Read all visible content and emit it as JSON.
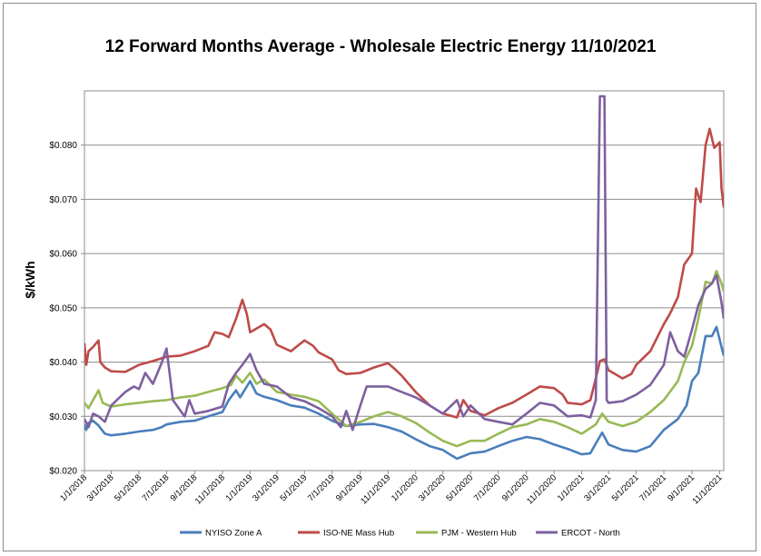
{
  "chart_data": {
    "type": "line",
    "title": "12 Forward Months Average - Wholesale Electric Energy 11/10/2021",
    "ylabel": "$/kWh",
    "xlabel": "",
    "ylim": [
      0.02,
      0.09
    ],
    "y_ticks": [
      "$0.020",
      "$0.030",
      "$0.040",
      "$0.050",
      "$0.060",
      "$0.070",
      "$0.080"
    ],
    "x_tick_labels": [
      "1/1/2018",
      "3/1/2018",
      "5/1/2018",
      "7/1/2018",
      "9/1/2018",
      "11/1/2018",
      "1/1/2019",
      "3/1/2019",
      "5/1/2019",
      "7/1/2019",
      "9/1/2019",
      "11/1/2019",
      "1/1/2020",
      "3/1/2020",
      "5/1/2020",
      "7/1/2020",
      "9/1/2020",
      "11/1/2020",
      "1/1/2021",
      "3/1/2021",
      "5/1/2021",
      "7/1/2021",
      "9/1/2021",
      "11/1/2021"
    ],
    "x_range": [
      "1/1/2018",
      "11/10/2021"
    ],
    "grid": "horizontal",
    "legend_position": "bottom",
    "series": [
      {
        "name": "NYISO Zone A",
        "color": "#4a7ebb",
        "points": [
          [
            "1/1/2018",
            0.0285
          ],
          [
            "1/5/2018",
            0.0275
          ],
          [
            "1/10/2018",
            0.0288
          ],
          [
            "1/20/2018",
            0.0292
          ],
          [
            "2/1/2018",
            0.0283
          ],
          [
            "2/15/2018",
            0.0268
          ],
          [
            "3/1/2018",
            0.0265
          ],
          [
            "4/1/2018",
            0.0268
          ],
          [
            "5/1/2018",
            0.0272
          ],
          [
            "6/1/2018",
            0.0275
          ],
          [
            "6/20/2018",
            0.028
          ],
          [
            "7/1/2018",
            0.0285
          ],
          [
            "8/1/2018",
            0.029
          ],
          [
            "9/1/2018",
            0.0292
          ],
          [
            "10/1/2018",
            0.03
          ],
          [
            "11/1/2018",
            0.0308
          ],
          [
            "11/15/2018",
            0.033
          ],
          [
            "12/1/2018",
            0.0348
          ],
          [
            "12/10/2018",
            0.0335
          ],
          [
            "1/1/2019",
            0.0365
          ],
          [
            "1/15/2019",
            0.0342
          ],
          [
            "2/1/2019",
            0.0336
          ],
          [
            "3/1/2019",
            0.033
          ],
          [
            "4/1/2019",
            0.032
          ],
          [
            "5/1/2019",
            0.0316
          ],
          [
            "6/1/2019",
            0.0305
          ],
          [
            "7/1/2019",
            0.0292
          ],
          [
            "8/1/2019",
            0.0282
          ],
          [
            "9/1/2019",
            0.0285
          ],
          [
            "10/1/2019",
            0.0286
          ],
          [
            "11/1/2019",
            0.028
          ],
          [
            "12/1/2019",
            0.0272
          ],
          [
            "1/1/2020",
            0.0258
          ],
          [
            "2/1/2020",
            0.0245
          ],
          [
            "3/1/2020",
            0.0238
          ],
          [
            "3/20/2020",
            0.0228
          ],
          [
            "4/1/2020",
            0.0222
          ],
          [
            "5/1/2020",
            0.0232
          ],
          [
            "6/1/2020",
            0.0235
          ],
          [
            "7/1/2020",
            0.0245
          ],
          [
            "8/1/2020",
            0.0255
          ],
          [
            "9/1/2020",
            0.0262
          ],
          [
            "10/1/2020",
            0.0258
          ],
          [
            "11/1/2020",
            0.0248
          ],
          [
            "12/1/2020",
            0.024
          ],
          [
            "1/1/2021",
            0.023
          ],
          [
            "1/20/2021",
            0.0232
          ],
          [
            "2/1/2021",
            0.025
          ],
          [
            "2/15/2021",
            0.027
          ],
          [
            "3/1/2021",
            0.0248
          ],
          [
            "4/1/2021",
            0.0238
          ],
          [
            "5/1/2021",
            0.0235
          ],
          [
            "6/1/2021",
            0.0245
          ],
          [
            "7/1/2021",
            0.0275
          ],
          [
            "8/1/2021",
            0.0295
          ],
          [
            "8/20/2021",
            0.032
          ],
          [
            "9/1/2021",
            0.0365
          ],
          [
            "9/15/2021",
            0.038
          ],
          [
            "10/1/2021",
            0.0448
          ],
          [
            "10/15/2021",
            0.0448
          ],
          [
            "10/25/2021",
            0.0465
          ],
          [
            "11/5/2021",
            0.0428
          ],
          [
            "11/10/2021",
            0.0412
          ]
        ]
      },
      {
        "name": "ISO-NE Mass Hub",
        "color": "#be4b48",
        "points": [
          [
            "1/1/2018",
            0.0435
          ],
          [
            "1/5/2018",
            0.0395
          ],
          [
            "1/10/2018",
            0.042
          ],
          [
            "1/20/2018",
            0.0428
          ],
          [
            "2/1/2018",
            0.044
          ],
          [
            "2/5/2018",
            0.04
          ],
          [
            "2/15/2018",
            0.039
          ],
          [
            "3/1/2018",
            0.0383
          ],
          [
            "4/1/2018",
            0.0382
          ],
          [
            "5/1/2018",
            0.0395
          ],
          [
            "6/1/2018",
            0.0402
          ],
          [
            "7/1/2018",
            0.041
          ],
          [
            "8/1/2018",
            0.0412
          ],
          [
            "9/1/2018",
            0.042
          ],
          [
            "10/1/2018",
            0.043
          ],
          [
            "10/15/2018",
            0.0455
          ],
          [
            "11/1/2018",
            0.0452
          ],
          [
            "11/15/2018",
            0.0446
          ],
          [
            "12/1/2018",
            0.048
          ],
          [
            "12/15/2018",
            0.0515
          ],
          [
            "12/25/2018",
            0.0488
          ],
          [
            "1/1/2019",
            0.0455
          ],
          [
            "2/1/2019",
            0.047
          ],
          [
            "2/15/2019",
            0.046
          ],
          [
            "3/1/2019",
            0.0432
          ],
          [
            "4/1/2019",
            0.042
          ],
          [
            "5/1/2019",
            0.044
          ],
          [
            "5/20/2019",
            0.043
          ],
          [
            "6/1/2019",
            0.0418
          ],
          [
            "7/1/2019",
            0.0405
          ],
          [
            "7/15/2019",
            0.0385
          ],
          [
            "8/1/2019",
            0.0378
          ],
          [
            "9/1/2019",
            0.038
          ],
          [
            "10/1/2019",
            0.039
          ],
          [
            "11/1/2019",
            0.0398
          ],
          [
            "11/15/2019",
            0.0388
          ],
          [
            "12/1/2019",
            0.0375
          ],
          [
            "1/1/2020",
            0.0345
          ],
          [
            "2/1/2020",
            0.032
          ],
          [
            "3/1/2020",
            0.0305
          ],
          [
            "4/1/2020",
            0.0298
          ],
          [
            "4/15/2020",
            0.033
          ],
          [
            "5/1/2020",
            0.031
          ],
          [
            "6/1/2020",
            0.0302
          ],
          [
            "7/1/2020",
            0.0315
          ],
          [
            "8/1/2020",
            0.0325
          ],
          [
            "9/1/2020",
            0.034
          ],
          [
            "10/1/2020",
            0.0355
          ],
          [
            "11/1/2020",
            0.0352
          ],
          [
            "11/20/2020",
            0.034
          ],
          [
            "12/1/2020",
            0.0325
          ],
          [
            "1/1/2021",
            0.0322
          ],
          [
            "1/20/2021",
            0.033
          ],
          [
            "2/1/2021",
            0.037
          ],
          [
            "2/10/2021",
            0.0402
          ],
          [
            "2/20/2021",
            0.0405
          ],
          [
            "3/1/2021",
            0.0385
          ],
          [
            "4/1/2021",
            0.037
          ],
          [
            "4/20/2021",
            0.0378
          ],
          [
            "5/1/2021",
            0.0395
          ],
          [
            "6/1/2021",
            0.042
          ],
          [
            "7/1/2021",
            0.047
          ],
          [
            "7/15/2021",
            0.049
          ],
          [
            "8/1/2021",
            0.052
          ],
          [
            "8/15/2021",
            0.058
          ],
          [
            "9/1/2021",
            0.06
          ],
          [
            "9/10/2021",
            0.072
          ],
          [
            "9/20/2021",
            0.0695
          ],
          [
            "10/1/2021",
            0.08
          ],
          [
            "10/10/2021",
            0.083
          ],
          [
            "10/20/2021",
            0.0795
          ],
          [
            "11/1/2021",
            0.0805
          ],
          [
            "11/5/2021",
            0.072
          ],
          [
            "11/10/2021",
            0.0685
          ]
        ]
      },
      {
        "name": "PJM - Western Hub",
        "color": "#98b954",
        "points": [
          [
            "1/1/2018",
            0.0325
          ],
          [
            "1/10/2018",
            0.0315
          ],
          [
            "1/20/2018",
            0.033
          ],
          [
            "2/1/2018",
            0.0348
          ],
          [
            "2/10/2018",
            0.0325
          ],
          [
            "3/1/2018",
            0.0318
          ],
          [
            "4/1/2018",
            0.0322
          ],
          [
            "5/1/2018",
            0.0325
          ],
          [
            "6/1/2018",
            0.0328
          ],
          [
            "7/1/2018",
            0.033
          ],
          [
            "8/1/2018",
            0.0335
          ],
          [
            "9/1/2018",
            0.0338
          ],
          [
            "10/1/2018",
            0.0345
          ],
          [
            "11/1/2018",
            0.0352
          ],
          [
            "11/20/2018",
            0.0358
          ],
          [
            "12/1/2018",
            0.0375
          ],
          [
            "12/15/2018",
            0.0362
          ],
          [
            "1/1/2019",
            0.038
          ],
          [
            "1/15/2019",
            0.036
          ],
          [
            "2/1/2019",
            0.0368
          ],
          [
            "3/1/2019",
            0.0345
          ],
          [
            "4/1/2019",
            0.034
          ],
          [
            "5/1/2019",
            0.0336
          ],
          [
            "6/1/2019",
            0.0328
          ],
          [
            "7/1/2019",
            0.0305
          ],
          [
            "8/1/2019",
            0.0282
          ],
          [
            "9/1/2019",
            0.029
          ],
          [
            "10/1/2019",
            0.03
          ],
          [
            "11/1/2019",
            0.0308
          ],
          [
            "12/1/2019",
            0.03
          ],
          [
            "1/1/2020",
            0.0288
          ],
          [
            "2/1/2020",
            0.027
          ],
          [
            "3/1/2020",
            0.0255
          ],
          [
            "4/1/2020",
            0.0245
          ],
          [
            "5/1/2020",
            0.0255
          ],
          [
            "6/1/2020",
            0.0255
          ],
          [
            "7/1/2020",
            0.0268
          ],
          [
            "8/1/2020",
            0.028
          ],
          [
            "9/1/2020",
            0.0285
          ],
          [
            "10/1/2020",
            0.0295
          ],
          [
            "11/1/2020",
            0.029
          ],
          [
            "12/1/2020",
            0.028
          ],
          [
            "1/1/2021",
            0.0268
          ],
          [
            "2/1/2021",
            0.0285
          ],
          [
            "2/15/2021",
            0.0305
          ],
          [
            "3/1/2021",
            0.029
          ],
          [
            "4/1/2021",
            0.0282
          ],
          [
            "5/1/2021",
            0.029
          ],
          [
            "6/1/2021",
            0.0308
          ],
          [
            "7/1/2021",
            0.033
          ],
          [
            "8/1/2021",
            0.0365
          ],
          [
            "8/15/2021",
            0.04
          ],
          [
            "9/1/2021",
            0.043
          ],
          [
            "9/15/2021",
            0.048
          ],
          [
            "10/1/2021",
            0.0548
          ],
          [
            "10/15/2021",
            0.0545
          ],
          [
            "10/25/2021",
            0.0568
          ],
          [
            "11/5/2021",
            0.0545
          ],
          [
            "11/10/2021",
            0.053
          ]
        ]
      },
      {
        "name": "ERCOT - North",
        "color": "#7d60a0",
        "points": [
          [
            "1/1/2018",
            0.0295
          ],
          [
            "1/10/2018",
            0.028
          ],
          [
            "1/20/2018",
            0.0305
          ],
          [
            "2/1/2018",
            0.03
          ],
          [
            "2/15/2018",
            0.029
          ],
          [
            "3/1/2018",
            0.032
          ],
          [
            "4/1/2018",
            0.0345
          ],
          [
            "4/20/2018",
            0.0355
          ],
          [
            "5/1/2018",
            0.035
          ],
          [
            "5/15/2018",
            0.038
          ],
          [
            "6/1/2018",
            0.036
          ],
          [
            "6/20/2018",
            0.0398
          ],
          [
            "7/1/2018",
            0.0425
          ],
          [
            "7/15/2018",
            0.033
          ],
          [
            "8/1/2018",
            0.031
          ],
          [
            "8/10/2018",
            0.03
          ],
          [
            "8/20/2018",
            0.033
          ],
          [
            "9/1/2018",
            0.0305
          ],
          [
            "10/1/2018",
            0.031
          ],
          [
            "11/1/2018",
            0.0318
          ],
          [
            "11/15/2018",
            0.036
          ],
          [
            "12/1/2018",
            0.038
          ],
          [
            "12/15/2018",
            0.0395
          ],
          [
            "1/1/2019",
            0.0415
          ],
          [
            "1/15/2019",
            0.0385
          ],
          [
            "2/1/2019",
            0.036
          ],
          [
            "3/1/2019",
            0.0355
          ],
          [
            "4/1/2019",
            0.0335
          ],
          [
            "5/1/2019",
            0.0328
          ],
          [
            "6/1/2019",
            0.0315
          ],
          [
            "7/1/2019",
            0.03
          ],
          [
            "7/20/2019",
            0.028
          ],
          [
            "8/1/2019",
            0.031
          ],
          [
            "8/15/2019",
            0.0275
          ],
          [
            "9/1/2019",
            0.032
          ],
          [
            "9/15/2019",
            0.0355
          ],
          [
            "10/1/2019",
            0.0355
          ],
          [
            "11/1/2019",
            0.0355
          ],
          [
            "12/1/2019",
            0.0345
          ],
          [
            "1/1/2020",
            0.0335
          ],
          [
            "2/1/2020",
            0.032
          ],
          [
            "3/1/2020",
            0.0305
          ],
          [
            "4/1/2020",
            0.033
          ],
          [
            "4/15/2020",
            0.03
          ],
          [
            "5/1/2020",
            0.032
          ],
          [
            "6/1/2020",
            0.0295
          ],
          [
            "7/1/2020",
            0.029
          ],
          [
            "8/1/2020",
            0.0285
          ],
          [
            "9/1/2020",
            0.0305
          ],
          [
            "10/1/2020",
            0.0325
          ],
          [
            "11/1/2020",
            0.032
          ],
          [
            "12/1/2020",
            0.03
          ],
          [
            "1/1/2021",
            0.0302
          ],
          [
            "1/20/2021",
            0.0298
          ],
          [
            "2/1/2021",
            0.033
          ],
          [
            "2/10/2021",
            0.089
          ],
          [
            "2/20/2021",
            0.089
          ],
          [
            "2/25/2021",
            0.033
          ],
          [
            "3/1/2021",
            0.0325
          ],
          [
            "4/1/2021",
            0.0328
          ],
          [
            "5/1/2021",
            0.034
          ],
          [
            "6/1/2021",
            0.0358
          ],
          [
            "7/1/2021",
            0.0395
          ],
          [
            "7/15/2021",
            0.0455
          ],
          [
            "8/1/2021",
            0.042
          ],
          [
            "8/15/2021",
            0.041
          ],
          [
            "9/1/2021",
            0.046
          ],
          [
            "9/15/2021",
            0.0505
          ],
          [
            "10/1/2021",
            0.0535
          ],
          [
            "10/15/2021",
            0.0545
          ],
          [
            "10/25/2021",
            0.056
          ],
          [
            "11/5/2021",
            0.051
          ],
          [
            "11/10/2021",
            0.048
          ]
        ]
      }
    ]
  }
}
